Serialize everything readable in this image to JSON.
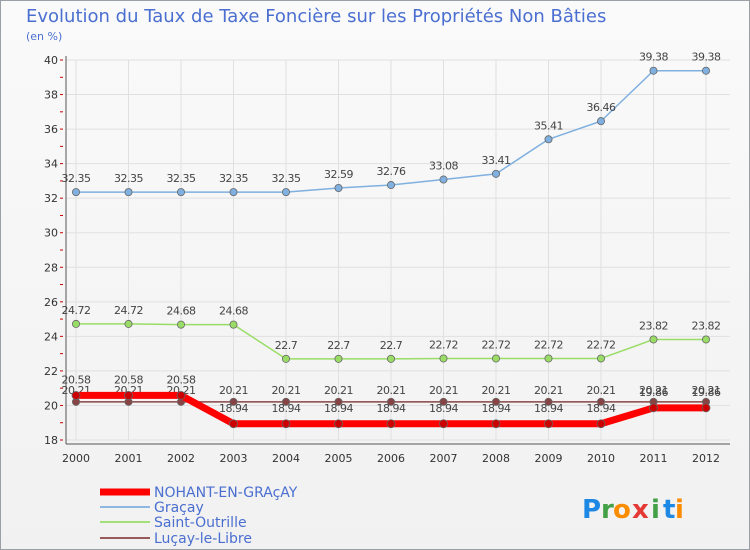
{
  "chart_data": {
    "type": "line",
    "title": "Evolution du Taux de Taxe Foncière sur les Propriétés Non Bâties",
    "ylabel": "(en %)",
    "xlabel": "",
    "ylim": [
      18,
      40
    ],
    "yticks": [
      18,
      20,
      22,
      24,
      26,
      28,
      30,
      32,
      34,
      36,
      38,
      40
    ],
    "grid": true,
    "legend_position": "bottom-left",
    "categories": [
      "2000",
      "2001",
      "2002",
      "2003",
      "2004",
      "2005",
      "2006",
      "2007",
      "2008",
      "2009",
      "2010",
      "2011",
      "2012"
    ],
    "series": [
      {
        "name": "NOHANT-EN-GRAçAY",
        "color": "#ff0000",
        "values": [
          20.58,
          20.58,
          20.58,
          18.94,
          18.94,
          18.94,
          18.94,
          18.94,
          18.94,
          18.94,
          18.94,
          19.86,
          19.86
        ],
        "labels": [
          "20.58",
          "20.58",
          "20.58",
          "18.94",
          "18.94",
          "18.94",
          "18.94",
          "18.94",
          "18.94",
          "18.94",
          "18.94",
          "19.86",
          "19.86"
        ]
      },
      {
        "name": "Graçay",
        "color": "#7fb0e0",
        "values": [
          32.35,
          32.35,
          32.35,
          32.35,
          32.35,
          32.59,
          32.76,
          33.08,
          33.41,
          35.41,
          36.46,
          39.38,
          39.38
        ],
        "labels": [
          "32.35",
          "32.35",
          "32.35",
          "32.35",
          "32.35",
          "32.59",
          "32.76",
          "33.08",
          "33.41",
          "35.41",
          "36.46",
          "39.38",
          "39.38"
        ]
      },
      {
        "name": "Saint-Outrille",
        "color": "#99dd66",
        "values": [
          24.72,
          24.72,
          24.68,
          24.68,
          22.7,
          22.7,
          22.7,
          22.72,
          22.72,
          22.72,
          22.72,
          23.82,
          23.82
        ],
        "labels": [
          "24.72",
          "24.72",
          "24.68",
          "24.68",
          "22.7",
          "22.7",
          "22.7",
          "22.72",
          "22.72",
          "22.72",
          "22.72",
          "23.82",
          "23.82"
        ]
      },
      {
        "name": "Luçay-le-Libre",
        "color": "#884444",
        "values": [
          20.21,
          20.21,
          20.21,
          20.21,
          20.21,
          20.21,
          20.21,
          20.21,
          20.21,
          20.21,
          20.21,
          20.21,
          20.21
        ],
        "labels": [
          "20.21",
          "20.21",
          "20.21",
          "20.21",
          "20.21",
          "20.21",
          "20.21",
          "20.21",
          "20.21",
          "20.21",
          "20.21",
          "20.21",
          "20.21"
        ]
      }
    ]
  },
  "branding": {
    "logo_letters": [
      "P",
      "r",
      "o",
      "x",
      "i",
      "t",
      "i"
    ],
    "logo_colors": [
      "#1e88e5",
      "#43a047",
      "#fb8c00",
      "#e53935",
      "#43a047",
      "#1e88e5",
      "#fb8c00"
    ]
  }
}
